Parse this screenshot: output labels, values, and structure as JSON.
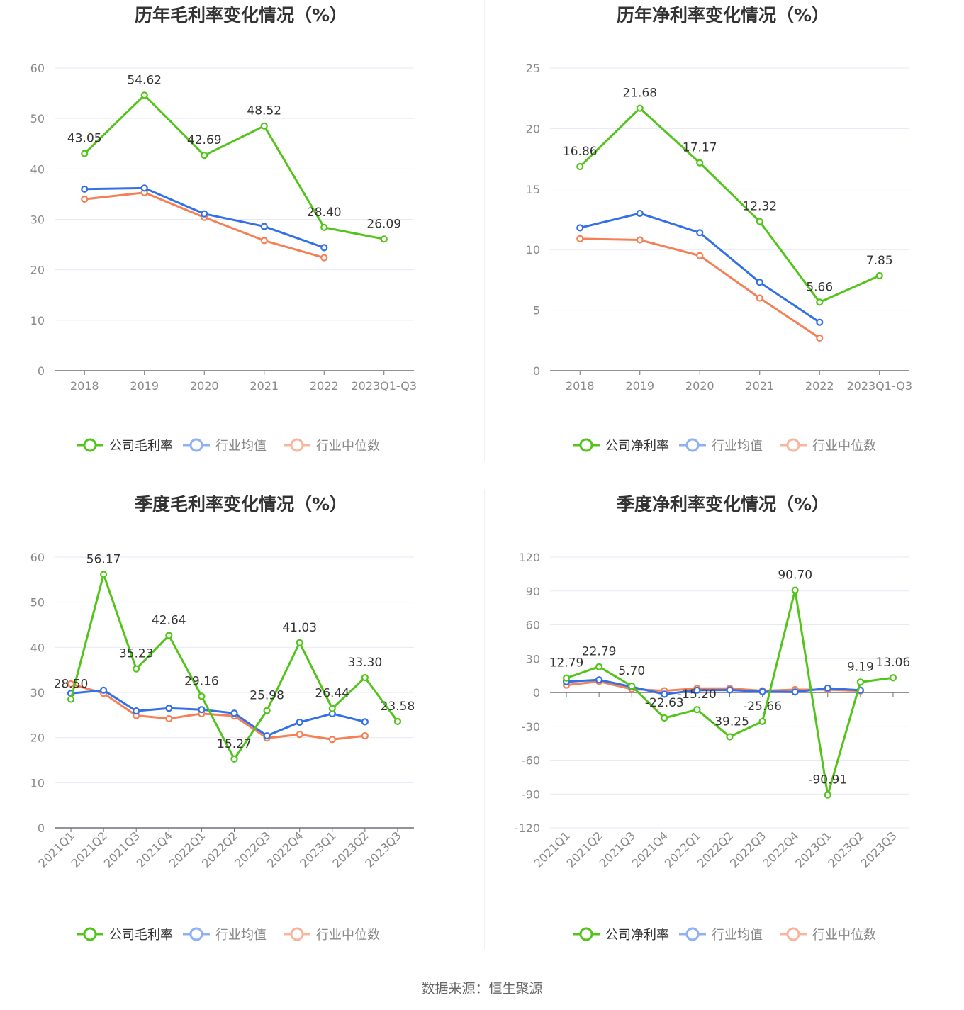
{
  "source_label": "数据来源：恒生聚源",
  "colors": {
    "company": "#52c41a",
    "average": "#3370e8",
    "median": "#f58055",
    "average_legend": "#8fb0f5",
    "median_legend": "#fab49b",
    "grid": "#e6eaf5",
    "axis": "#6e7079"
  },
  "chart_data": [
    {
      "type": "line",
      "title": "历年毛利率变化情况（%）",
      "categories": [
        "2018",
        "2019",
        "2020",
        "2021",
        "2022",
        "2023Q1-Q3"
      ],
      "ylim": [
        0,
        60
      ],
      "yticks": [
        "0",
        "10",
        "20",
        "30",
        "40",
        "50",
        "60"
      ],
      "grid": true,
      "legend_position": "bottom",
      "series": [
        {
          "name": "公司毛利率",
          "key": "company",
          "values": [
            43.05,
            54.62,
            42.69,
            48.52,
            28.4,
            26.09
          ],
          "labels": [
            "43.05",
            "54.62",
            "42.69",
            "48.52",
            "28.40",
            "26.09"
          ]
        },
        {
          "name": "行业均值",
          "key": "average",
          "values": [
            36.0,
            36.2,
            31.1,
            28.6,
            24.4,
            null
          ]
        },
        {
          "name": "行业中位数",
          "key": "median",
          "values": [
            34.0,
            35.3,
            30.4,
            25.8,
            22.4,
            null
          ]
        }
      ]
    },
    {
      "type": "line",
      "title": "历年净利率变化情况（%）",
      "categories": [
        "2018",
        "2019",
        "2020",
        "2021",
        "2022",
        "2023Q1-Q3"
      ],
      "ylim": [
        0,
        25
      ],
      "yticks": [
        "0",
        "5",
        "10",
        "15",
        "20",
        "25"
      ],
      "grid": true,
      "legend_position": "bottom",
      "series": [
        {
          "name": "公司净利率",
          "key": "company",
          "values": [
            16.86,
            21.68,
            17.17,
            12.32,
            5.66,
            7.85
          ],
          "labels": [
            "16.86",
            "21.68",
            "17.17",
            "12.32",
            "5.66",
            "7.85"
          ]
        },
        {
          "name": "行业均值",
          "key": "average",
          "values": [
            11.8,
            13.0,
            11.4,
            7.3,
            4.0,
            null
          ]
        },
        {
          "name": "行业中位数",
          "key": "median",
          "values": [
            10.9,
            10.8,
            9.5,
            6.0,
            2.7,
            null
          ]
        }
      ]
    },
    {
      "type": "line",
      "title": "季度毛利率变化情况（%）",
      "categories": [
        "2021Q1",
        "2021Q2",
        "2021Q3",
        "2021Q4",
        "2022Q1",
        "2022Q2",
        "2022Q3",
        "2022Q4",
        "2023Q1",
        "2023Q2",
        "2023Q3"
      ],
      "ylim": [
        0,
        60
      ],
      "yticks": [
        "0",
        "10",
        "20",
        "30",
        "40",
        "50",
        "60"
      ],
      "grid": true,
      "legend_position": "bottom",
      "series": [
        {
          "name": "公司毛利率",
          "key": "company",
          "values": [
            28.5,
            56.17,
            35.23,
            42.64,
            29.16,
            15.27,
            25.98,
            41.03,
            26.44,
            33.3,
            23.58
          ],
          "labels": [
            "28.50",
            "56.17",
            "35.23",
            "42.64",
            "29.16",
            "15.27",
            "25.98",
            "41.03",
            "26.44",
            "33.30",
            "23.58"
          ]
        },
        {
          "name": "行业均值",
          "key": "average",
          "values": [
            29.8,
            30.5,
            25.9,
            26.5,
            26.2,
            25.4,
            20.4,
            23.4,
            25.3,
            23.5,
            null
          ]
        },
        {
          "name": "行业中位数",
          "key": "median",
          "values": [
            31.9,
            29.8,
            24.9,
            24.2,
            25.3,
            24.8,
            19.9,
            20.7,
            19.6,
            20.4,
            null
          ]
        }
      ]
    },
    {
      "type": "line",
      "title": "季度净利率变化情况（%）",
      "categories": [
        "2021Q1",
        "2021Q2",
        "2021Q3",
        "2021Q4",
        "2022Q1",
        "2022Q2",
        "2022Q3",
        "2022Q4",
        "2023Q1",
        "2023Q2",
        "2023Q3"
      ],
      "ylim": [
        -120,
        120
      ],
      "yticks": [
        "-120",
        "-90",
        "-60",
        "-30",
        "0",
        "30",
        "60",
        "90",
        "120"
      ],
      "grid": true,
      "legend_position": "bottom",
      "series": [
        {
          "name": "公司净利率",
          "key": "company",
          "values": [
            12.79,
            22.79,
            5.7,
            -22.63,
            -15.2,
            -39.25,
            -25.66,
            90.7,
            -90.91,
            9.19,
            13.06
          ],
          "labels": [
            "12.79",
            "22.79",
            "5.70",
            "-22.63",
            "-15.20",
            "-39.25",
            "-25.66",
            "90.70",
            "-90.91",
            "9.19",
            "13.06"
          ]
        },
        {
          "name": "行业均值",
          "key": "average",
          "values": [
            9.5,
            11.2,
            5.0,
            -1.5,
            2.0,
            2.2,
            0.8,
            0.5,
            3.8,
            2.0,
            null
          ]
        },
        {
          "name": "行业中位数",
          "key": "median",
          "values": [
            6.5,
            9.8,
            3.0,
            1.5,
            3.6,
            3.6,
            1.5,
            2.5,
            2.5,
            1.4,
            null
          ]
        }
      ]
    }
  ]
}
